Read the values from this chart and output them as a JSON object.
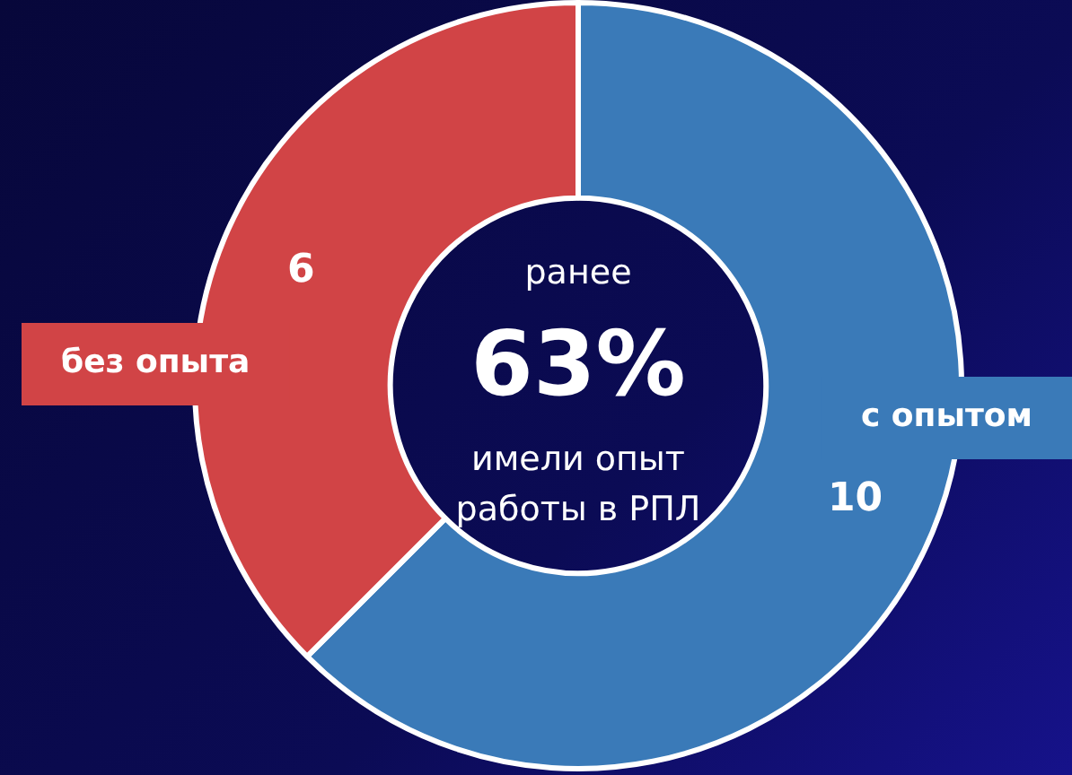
{
  "chart_data": {
    "type": "donut",
    "categories": [
      "с опытом",
      "без опыта"
    ],
    "values": [
      10,
      6
    ],
    "colors": [
      "#3a7ab8",
      "#d14446"
    ],
    "data_labels": true,
    "legend": false,
    "annotations": [
      "ранее",
      "63%",
      "имели опыт",
      "работы в РПЛ"
    ]
  }
}
